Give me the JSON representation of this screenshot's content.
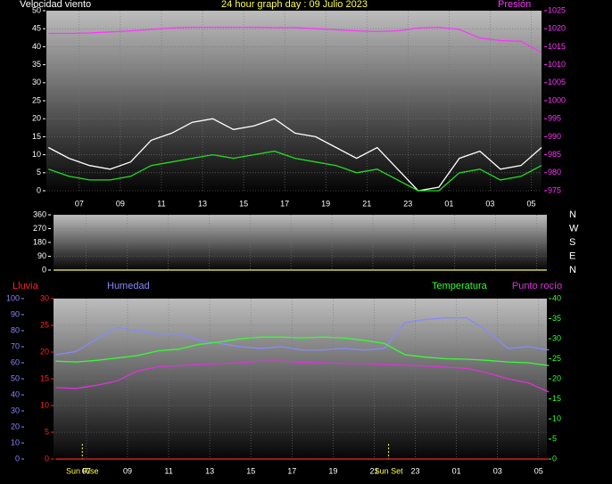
{
  "chart_data": [
    {
      "type": "line",
      "title": "24 hour graph day : 09 Julio 2023",
      "y_label": "Velocidad viento",
      "x": [
        5.5,
        6.5,
        7.5,
        8.5,
        9.5,
        10.5,
        11.5,
        12.5,
        13.5,
        14.5,
        15.5,
        16.5,
        17.5,
        18.5,
        19.5,
        20.5,
        21.5,
        22.5,
        23.5,
        24.5,
        25.5,
        26.5,
        27.5,
        28.5,
        29.5
      ],
      "xlim": [
        5.4,
        29.5
      ],
      "xticks": [
        {
          "value": 7,
          "label": "07"
        },
        {
          "value": 9,
          "label": "09"
        },
        11,
        13,
        15,
        17,
        19,
        21,
        23,
        {
          "value": 25,
          "label": "01"
        },
        {
          "value": 27,
          "label": "03"
        },
        {
          "value": 29,
          "label": "05"
        }
      ],
      "ylim": [
        0,
        50
      ],
      "yticks": [
        0,
        5,
        10,
        15,
        20,
        25,
        30,
        35,
        40,
        45,
        50
      ],
      "ycolor": "#ffffff",
      "y2lim": [
        975,
        1025
      ],
      "y2ticks": [
        975,
        980,
        985,
        990,
        995,
        1000,
        1005,
        1010,
        1015,
        1020,
        1025
      ],
      "y2color": "#ff33ff",
      "grid": true,
      "series": [
        {
          "color": "#ffffff",
          "values": [
            12,
            9,
            7,
            6,
            8,
            14,
            16,
            19,
            20,
            17,
            18,
            20,
            16,
            15,
            12,
            9,
            12,
            6,
            0,
            1,
            9,
            11,
            6,
            7,
            12
          ]
        },
        {
          "color": "#22dd22",
          "values": [
            6,
            4,
            3,
            3,
            4,
            7,
            8,
            9,
            10,
            9,
            10,
            11,
            9,
            8,
            7,
            5,
            6,
            3,
            0,
            0,
            5,
            6,
            3,
            4,
            7
          ]
        },
        {
          "name": "Presión",
          "color": "#ff33ff",
          "axis": "y2",
          "values": [
            1018.7,
            1018.7,
            1018.8,
            1019.1,
            1019.4,
            1019.8,
            1020.2,
            1020.4,
            1020.4,
            1020.4,
            1020.4,
            1020.3,
            1020.3,
            1020.0,
            1019.7,
            1019.4,
            1019.2,
            1019.4,
            1020.2,
            1020.4,
            1019.8,
            1017.4,
            1016.7,
            1016.5,
            1013.4
          ]
        }
      ]
    },
    {
      "type": "line",
      "x": [
        5.4,
        29.5
      ],
      "xlim": [
        5.4,
        29.5
      ],
      "xticks": [
        7,
        9,
        11,
        13,
        15,
        17,
        19,
        21,
        23,
        25,
        27,
        29
      ],
      "ylim": [
        0,
        360
      ],
      "yticks": [
        0,
        90,
        180,
        270,
        360
      ],
      "ycolor": "#ffffff",
      "compass_labels": [
        "N",
        "W",
        "S",
        "E",
        "N"
      ],
      "grid": true,
      "series": [
        {
          "color": "#ffff44",
          "values": [
            0,
            0
          ]
        }
      ]
    },
    {
      "type": "line",
      "x": [
        5.5,
        6.5,
        7.5,
        8.5,
        9.5,
        10.5,
        11.5,
        12.5,
        13.5,
        14.5,
        15.5,
        16.5,
        17.5,
        18.5,
        19.5,
        20.5,
        21.5,
        22.5,
        23.5,
        24.5,
        25.5,
        26.5,
        27.5,
        28.5,
        29.5
      ],
      "xlim": [
        5.4,
        29.4
      ],
      "xticks": [
        {
          "value": 7,
          "label": "07"
        },
        {
          "value": 9,
          "label": "09"
        },
        11,
        13,
        15,
        17,
        19,
        21,
        23,
        {
          "value": 25,
          "label": "01"
        },
        {
          "value": 27,
          "label": "03"
        },
        {
          "value": 29,
          "label": "05"
        }
      ],
      "ylim": [
        0,
        30
      ],
      "yticks": [
        0,
        5,
        10,
        15,
        20,
        25,
        30
      ],
      "ycolor": "#ff2222",
      "y2lim": [
        0,
        40
      ],
      "y2ticks": [
        0,
        5,
        10,
        15,
        20,
        25,
        30,
        35,
        40
      ],
      "y2color": "#33ff33",
      "y3lim": [
        0,
        100
      ],
      "y3ticks": [
        0,
        10,
        20,
        30,
        40,
        50,
        60,
        70,
        80,
        90,
        100
      ],
      "y3color": "#8888ff",
      "grid": true,
      "markers": [
        {
          "label": "Sun Rise",
          "x": 6.8
        },
        {
          "label": "Sun Set",
          "x": 21.7
        }
      ],
      "series": [
        {
          "name": "Lluvia",
          "color": "#ff2222",
          "values": [
            0,
            0,
            0,
            0,
            0,
            0,
            0,
            0,
            0,
            0,
            0,
            0,
            0,
            0,
            0,
            0,
            0,
            0,
            0,
            0,
            0,
            0,
            0,
            0,
            0
          ]
        },
        {
          "name": "Humedad",
          "color": "#8888ff",
          "axis": "y3",
          "values": [
            65,
            67,
            75,
            82,
            80,
            78,
            78,
            74,
            72,
            70,
            69,
            70,
            68,
            68,
            69,
            68,
            69,
            85,
            87,
            88,
            88,
            80,
            69,
            70,
            68
          ]
        },
        {
          "name": "Temperatura",
          "color": "#33ff33",
          "axis": "y2",
          "values": [
            24.4,
            24.2,
            24.6,
            25.2,
            25.8,
            27.0,
            27.4,
            28.6,
            29.2,
            30.0,
            30.4,
            30.4,
            30.2,
            30.4,
            30.2,
            29.6,
            28.8,
            26.0,
            25.4,
            25.0,
            24.9,
            24.6,
            24.2,
            24.0,
            23.3
          ]
        },
        {
          "name": "Punto rocío",
          "color": "#dd33dd",
          "axis": "y2",
          "values": [
            17.8,
            17.6,
            18.4,
            19.5,
            22.0,
            23.0,
            23.3,
            23.6,
            23.8,
            24.0,
            24.4,
            24.4,
            24.1,
            24.0,
            23.8,
            23.8,
            23.6,
            23.4,
            23.2,
            22.9,
            22.6,
            21.5,
            20.0,
            19.0,
            16.7
          ]
        }
      ]
    }
  ]
}
